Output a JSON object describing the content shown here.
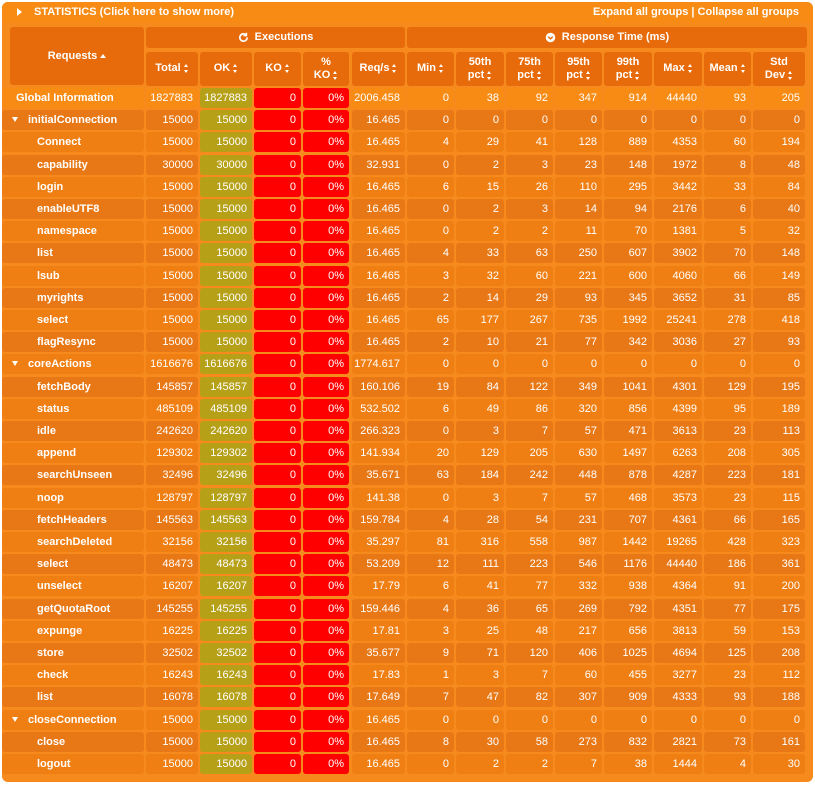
{
  "title_bar": {
    "title": "STATISTICS (Click here to show more)",
    "expand_all": "Expand all groups",
    "separator": " | ",
    "collapse_all": "Collapse all groups"
  },
  "header": {
    "requests": "Requests",
    "executions": "Executions",
    "response_time": "Response Time (ms)",
    "columns": [
      "Total",
      "OK",
      "KO",
      "% KO",
      "Req/s",
      "Min",
      "50th pct",
      "75th pct",
      "95th pct",
      "99th pct",
      "Max",
      "Mean",
      "Std Dev"
    ]
  },
  "colors": {
    "panel": "#f78a1d",
    "header": "#e76b0a",
    "ok": "#b6a018",
    "ko": "#ff0000"
  },
  "rows": [
    {
      "type": "global",
      "name": "Global Information",
      "total": "1827883",
      "ok": "1827883",
      "ko": "0",
      "pko": "0%",
      "rps": "2006.458",
      "min": "0",
      "p50": "38",
      "p75": "92",
      "p95": "347",
      "p99": "914",
      "max": "44440",
      "mean": "93",
      "std": "205"
    },
    {
      "type": "group",
      "name": "initialConnection",
      "total": "15000",
      "ok": "15000",
      "ko": "0",
      "pko": "0%",
      "rps": "16.465",
      "min": "0",
      "p50": "0",
      "p75": "0",
      "p95": "0",
      "p99": "0",
      "max": "0",
      "mean": "0",
      "std": "0"
    },
    {
      "type": "item",
      "name": "Connect",
      "total": "15000",
      "ok": "15000",
      "ko": "0",
      "pko": "0%",
      "rps": "16.465",
      "min": "4",
      "p50": "29",
      "p75": "41",
      "p95": "128",
      "p99": "889",
      "max": "4353",
      "mean": "60",
      "std": "194"
    },
    {
      "type": "item",
      "name": "capability",
      "total": "30000",
      "ok": "30000",
      "ko": "0",
      "pko": "0%",
      "rps": "32.931",
      "min": "0",
      "p50": "2",
      "p75": "3",
      "p95": "23",
      "p99": "148",
      "max": "1972",
      "mean": "8",
      "std": "48"
    },
    {
      "type": "item",
      "name": "login",
      "total": "15000",
      "ok": "15000",
      "ko": "0",
      "pko": "0%",
      "rps": "16.465",
      "min": "6",
      "p50": "15",
      "p75": "26",
      "p95": "110",
      "p99": "295",
      "max": "3442",
      "mean": "33",
      "std": "84"
    },
    {
      "type": "item",
      "name": "enableUTF8",
      "total": "15000",
      "ok": "15000",
      "ko": "0",
      "pko": "0%",
      "rps": "16.465",
      "min": "0",
      "p50": "2",
      "p75": "3",
      "p95": "14",
      "p99": "94",
      "max": "2176",
      "mean": "6",
      "std": "40"
    },
    {
      "type": "item",
      "name": "namespace",
      "total": "15000",
      "ok": "15000",
      "ko": "0",
      "pko": "0%",
      "rps": "16.465",
      "min": "0",
      "p50": "2",
      "p75": "2",
      "p95": "11",
      "p99": "70",
      "max": "1381",
      "mean": "5",
      "std": "32"
    },
    {
      "type": "item",
      "name": "list",
      "total": "15000",
      "ok": "15000",
      "ko": "0",
      "pko": "0%",
      "rps": "16.465",
      "min": "4",
      "p50": "33",
      "p75": "63",
      "p95": "250",
      "p99": "607",
      "max": "3902",
      "mean": "70",
      "std": "148"
    },
    {
      "type": "item",
      "name": "lsub",
      "total": "15000",
      "ok": "15000",
      "ko": "0",
      "pko": "0%",
      "rps": "16.465",
      "min": "3",
      "p50": "32",
      "p75": "60",
      "p95": "221",
      "p99": "600",
      "max": "4060",
      "mean": "66",
      "std": "149"
    },
    {
      "type": "item",
      "name": "myrights",
      "total": "15000",
      "ok": "15000",
      "ko": "0",
      "pko": "0%",
      "rps": "16.465",
      "min": "2",
      "p50": "14",
      "p75": "29",
      "p95": "93",
      "p99": "345",
      "max": "3652",
      "mean": "31",
      "std": "85"
    },
    {
      "type": "item",
      "name": "select",
      "total": "15000",
      "ok": "15000",
      "ko": "0",
      "pko": "0%",
      "rps": "16.465",
      "min": "65",
      "p50": "177",
      "p75": "267",
      "p95": "735",
      "p99": "1992",
      "max": "25241",
      "mean": "278",
      "std": "418"
    },
    {
      "type": "item",
      "name": "flagResync",
      "total": "15000",
      "ok": "15000",
      "ko": "0",
      "pko": "0%",
      "rps": "16.465",
      "min": "2",
      "p50": "10",
      "p75": "21",
      "p95": "77",
      "p99": "342",
      "max": "3036",
      "mean": "27",
      "std": "93"
    },
    {
      "type": "group",
      "name": "coreActions",
      "total": "1616676",
      "ok": "1616676",
      "ko": "0",
      "pko": "0%",
      "rps": "1774.617",
      "min": "0",
      "p50": "0",
      "p75": "0",
      "p95": "0",
      "p99": "0",
      "max": "0",
      "mean": "0",
      "std": "0"
    },
    {
      "type": "item",
      "name": "fetchBody",
      "total": "145857",
      "ok": "145857",
      "ko": "0",
      "pko": "0%",
      "rps": "160.106",
      "min": "19",
      "p50": "84",
      "p75": "122",
      "p95": "349",
      "p99": "1041",
      "max": "4301",
      "mean": "129",
      "std": "195"
    },
    {
      "type": "item",
      "name": "status",
      "total": "485109",
      "ok": "485109",
      "ko": "0",
      "pko": "0%",
      "rps": "532.502",
      "min": "6",
      "p50": "49",
      "p75": "86",
      "p95": "320",
      "p99": "856",
      "max": "4399",
      "mean": "95",
      "std": "189"
    },
    {
      "type": "item",
      "name": "idle",
      "total": "242620",
      "ok": "242620",
      "ko": "0",
      "pko": "0%",
      "rps": "266.323",
      "min": "0",
      "p50": "3",
      "p75": "7",
      "p95": "57",
      "p99": "471",
      "max": "3613",
      "mean": "23",
      "std": "113"
    },
    {
      "type": "item",
      "name": "append",
      "total": "129302",
      "ok": "129302",
      "ko": "0",
      "pko": "0%",
      "rps": "141.934",
      "min": "20",
      "p50": "129",
      "p75": "205",
      "p95": "630",
      "p99": "1497",
      "max": "6263",
      "mean": "208",
      "std": "305"
    },
    {
      "type": "item",
      "name": "searchUnseen",
      "total": "32496",
      "ok": "32496",
      "ko": "0",
      "pko": "0%",
      "rps": "35.671",
      "min": "63",
      "p50": "184",
      "p75": "242",
      "p95": "448",
      "p99": "878",
      "max": "4287",
      "mean": "223",
      "std": "181"
    },
    {
      "type": "item",
      "name": "noop",
      "total": "128797",
      "ok": "128797",
      "ko": "0",
      "pko": "0%",
      "rps": "141.38",
      "min": "0",
      "p50": "3",
      "p75": "7",
      "p95": "57",
      "p99": "468",
      "max": "3573",
      "mean": "23",
      "std": "115"
    },
    {
      "type": "item",
      "name": "fetchHeaders",
      "total": "145563",
      "ok": "145563",
      "ko": "0",
      "pko": "0%",
      "rps": "159.784",
      "min": "4",
      "p50": "28",
      "p75": "54",
      "p95": "231",
      "p99": "707",
      "max": "4361",
      "mean": "66",
      "std": "165"
    },
    {
      "type": "item",
      "name": "searchDeleted",
      "total": "32156",
      "ok": "32156",
      "ko": "0",
      "pko": "0%",
      "rps": "35.297",
      "min": "81",
      "p50": "316",
      "p75": "558",
      "p95": "987",
      "p99": "1442",
      "max": "19265",
      "mean": "428",
      "std": "323"
    },
    {
      "type": "item",
      "name": "select",
      "total": "48473",
      "ok": "48473",
      "ko": "0",
      "pko": "0%",
      "rps": "53.209",
      "min": "12",
      "p50": "111",
      "p75": "223",
      "p95": "546",
      "p99": "1176",
      "max": "44440",
      "mean": "186",
      "std": "361"
    },
    {
      "type": "item",
      "name": "unselect",
      "total": "16207",
      "ok": "16207",
      "ko": "0",
      "pko": "0%",
      "rps": "17.79",
      "min": "6",
      "p50": "41",
      "p75": "77",
      "p95": "332",
      "p99": "938",
      "max": "4364",
      "mean": "91",
      "std": "200"
    },
    {
      "type": "item",
      "name": "getQuotaRoot",
      "total": "145255",
      "ok": "145255",
      "ko": "0",
      "pko": "0%",
      "rps": "159.446",
      "min": "4",
      "p50": "36",
      "p75": "65",
      "p95": "269",
      "p99": "792",
      "max": "4351",
      "mean": "77",
      "std": "175"
    },
    {
      "type": "item",
      "name": "expunge",
      "total": "16225",
      "ok": "16225",
      "ko": "0",
      "pko": "0%",
      "rps": "17.81",
      "min": "3",
      "p50": "25",
      "p75": "48",
      "p95": "217",
      "p99": "656",
      "max": "3813",
      "mean": "59",
      "std": "153"
    },
    {
      "type": "item",
      "name": "store",
      "total": "32502",
      "ok": "32502",
      "ko": "0",
      "pko": "0%",
      "rps": "35.677",
      "min": "9",
      "p50": "71",
      "p75": "120",
      "p95": "406",
      "p99": "1025",
      "max": "4694",
      "mean": "125",
      "std": "208"
    },
    {
      "type": "item",
      "name": "check",
      "total": "16243",
      "ok": "16243",
      "ko": "0",
      "pko": "0%",
      "rps": "17.83",
      "min": "1",
      "p50": "3",
      "p75": "7",
      "p95": "60",
      "p99": "455",
      "max": "3277",
      "mean": "23",
      "std": "112"
    },
    {
      "type": "item",
      "name": "list",
      "total": "16078",
      "ok": "16078",
      "ko": "0",
      "pko": "0%",
      "rps": "17.649",
      "min": "7",
      "p50": "47",
      "p75": "82",
      "p95": "307",
      "p99": "909",
      "max": "4333",
      "mean": "93",
      "std": "188"
    },
    {
      "type": "group",
      "name": "closeConnection",
      "total": "15000",
      "ok": "15000",
      "ko": "0",
      "pko": "0%",
      "rps": "16.465",
      "min": "0",
      "p50": "0",
      "p75": "0",
      "p95": "0",
      "p99": "0",
      "max": "0",
      "mean": "0",
      "std": "0"
    },
    {
      "type": "item",
      "name": "close",
      "total": "15000",
      "ok": "15000",
      "ko": "0",
      "pko": "0%",
      "rps": "16.465",
      "min": "8",
      "p50": "30",
      "p75": "58",
      "p95": "273",
      "p99": "832",
      "max": "2821",
      "mean": "73",
      "std": "161"
    },
    {
      "type": "item",
      "name": "logout",
      "total": "15000",
      "ok": "15000",
      "ko": "0",
      "pko": "0%",
      "rps": "16.465",
      "min": "0",
      "p50": "2",
      "p75": "2",
      "p95": "7",
      "p99": "38",
      "max": "1444",
      "mean": "4",
      "std": "30"
    }
  ]
}
